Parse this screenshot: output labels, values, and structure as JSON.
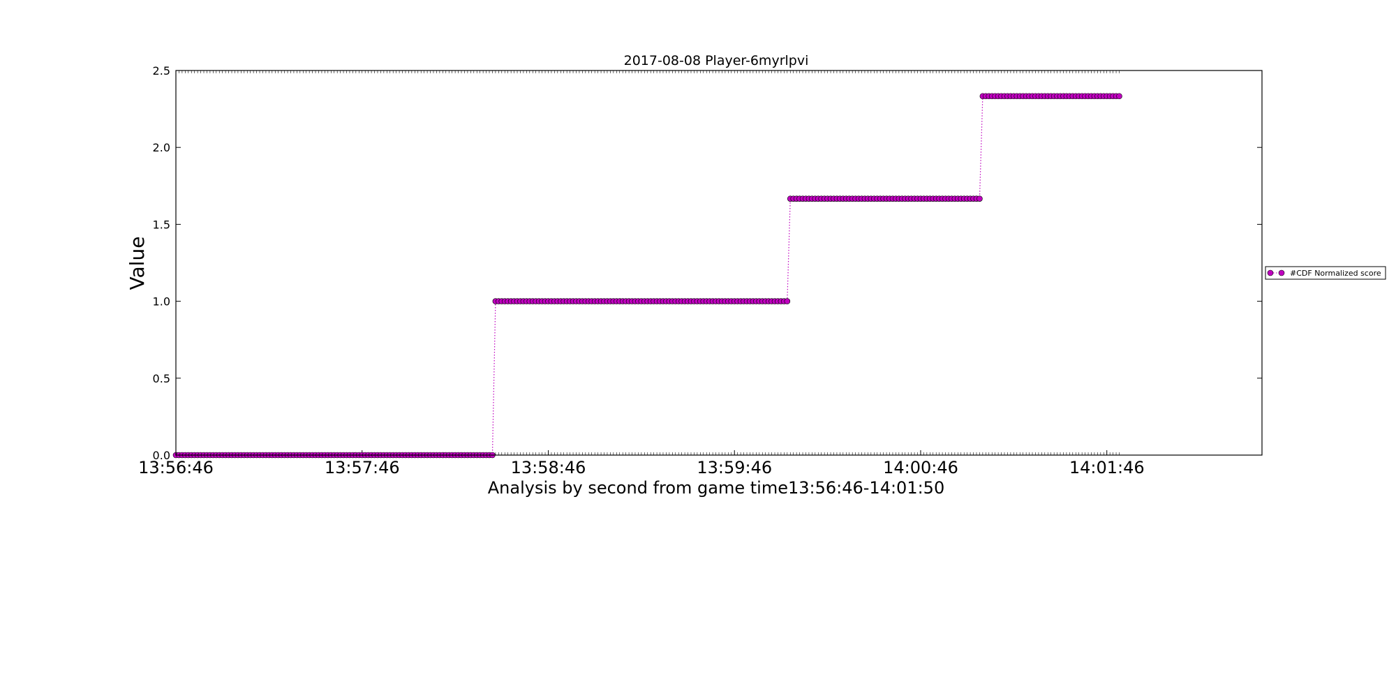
{
  "chart_data": {
    "type": "line",
    "title": "2017-08-08 Player-6myrlpvi",
    "xlabel": "Analysis by second from game time13:56:46-14:01:50",
    "ylabel": "Value",
    "xlim": [
      0,
      350
    ],
    "ylim": [
      0,
      2.5
    ],
    "x_ticks": [
      0,
      60,
      120,
      180,
      240,
      300
    ],
    "x_tick_labels": [
      "13:56:46",
      "13:57:46",
      "13:58:46",
      "13:59:46",
      "14:00:46",
      "14:01:46"
    ],
    "y_ticks": [
      0,
      0.5,
      1,
      1.5,
      2,
      2.5
    ],
    "y_tick_labels": [
      "0.0",
      "0.5",
      "1.0",
      "1.5",
      "2.0",
      "2.5"
    ],
    "legend": {
      "position": "right-outside",
      "entries": [
        "#CDF Normalized score"
      ]
    },
    "series": [
      {
        "name": "#CDF Normalized score",
        "color": "#bf00bf",
        "marker": "circle",
        "linestyle": "dotted",
        "steps": [
          {
            "x_start": 0,
            "x_end": 102,
            "value": 0
          },
          {
            "x_start": 103,
            "x_end": 197,
            "value": 1.0
          },
          {
            "x_start": 198,
            "x_end": 259,
            "value": 1.6667
          },
          {
            "x_start": 260,
            "x_end": 304,
            "value": 2.3333
          }
        ]
      }
    ]
  }
}
